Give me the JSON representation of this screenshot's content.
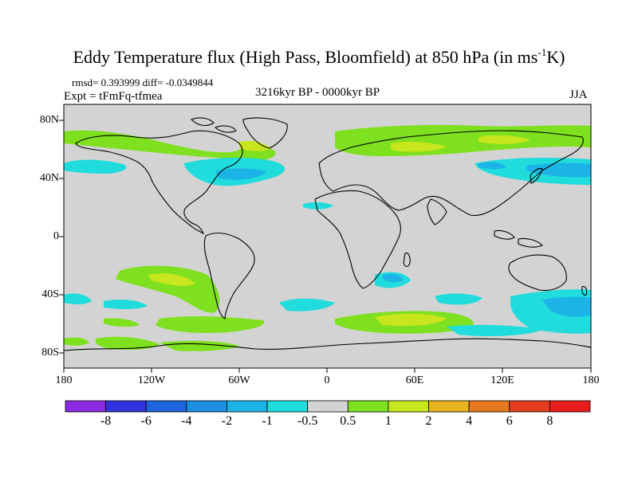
{
  "title": {
    "main": "Eddy Temperature flux (High Pass, Bloomfield) at 850 hPa (in ms",
    "sup": "-1",
    "tail": "K)"
  },
  "stats": {
    "rmsd": "rmsd= 0.393999 diff= -0.0349844",
    "expt": "Expt = tFmFq-tfmea",
    "period": "3216kyr BP - 0000kyr BP",
    "season": "JJA"
  },
  "map": {
    "lat_labels": [
      "80N",
      "40N",
      "0",
      "40S",
      "80S"
    ],
    "lon_labels": [
      "180",
      "120W",
      "60W",
      "0",
      "60E",
      "120E",
      "180"
    ],
    "background_color": "#d3d3d3",
    "coastline_color": "#000000"
  },
  "colorbar": {
    "levels": [
      "-8",
      "-6",
      "-4",
      "-2",
      "-1",
      "-0.5",
      "0.5",
      "1",
      "2",
      "4",
      "6",
      "8"
    ],
    "colors": [
      "#8a2be2",
      "#3232dc",
      "#1e64dc",
      "#1e90e0",
      "#1cb4e6",
      "#20dcdc",
      "#d3d3d3",
      "#7ee01e",
      "#c8e61e",
      "#e6b41e",
      "#e6781e",
      "#e63c1e",
      "#e61e1e"
    ]
  }
}
